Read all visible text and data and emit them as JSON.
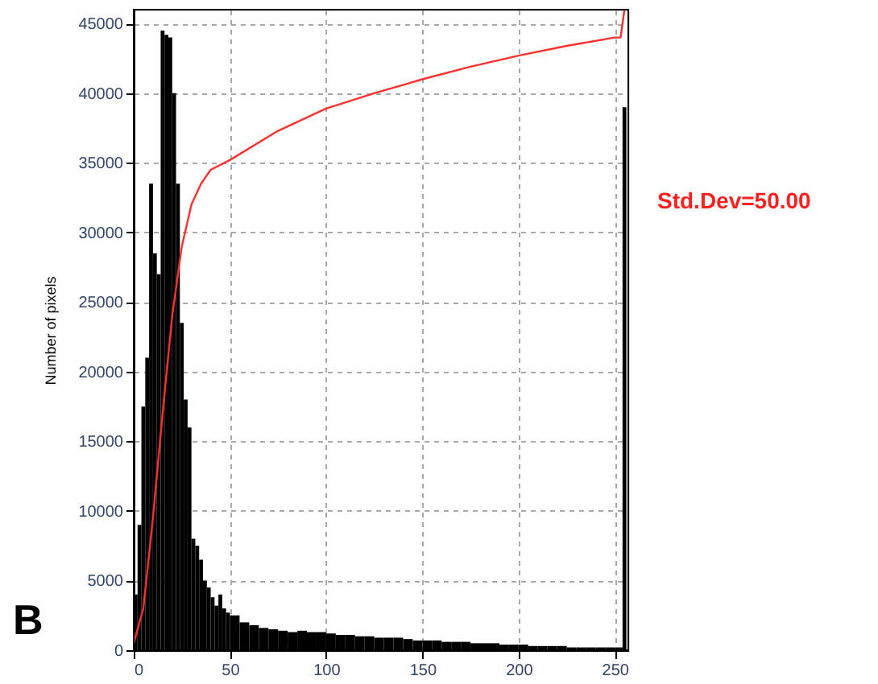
{
  "chart_data": {
    "type": "histogram",
    "ylabel": "Number of pixels",
    "bins": [
      0,
      2,
      4,
      6,
      8,
      10,
      12,
      14,
      16,
      18,
      20,
      22,
      24,
      26,
      28,
      30,
      32,
      34,
      36,
      38,
      40,
      42,
      44,
      46,
      48,
      50,
      55,
      60,
      65,
      70,
      75,
      80,
      85,
      90,
      95,
      100,
      105,
      110,
      115,
      120,
      125,
      130,
      135,
      140,
      145,
      150,
      155,
      160,
      165,
      170,
      175,
      180,
      185,
      190,
      195,
      200,
      205,
      210,
      215,
      220,
      225,
      230,
      235,
      240,
      245,
      250,
      254,
      256
    ],
    "values": [
      4000,
      9000,
      17500,
      21000,
      33500,
      28500,
      27000,
      44500,
      44200,
      44000,
      40000,
      33500,
      23500,
      18000,
      16000,
      8000,
      7500,
      6500,
      5000,
      4500,
      3800,
      3200,
      4000,
      3000,
      2700,
      2500,
      2000,
      1800,
      1600,
      1500,
      1400,
      1300,
      1400,
      1300,
      1300,
      1200,
      1100,
      1100,
      1000,
      1000,
      900,
      900,
      900,
      800,
      700,
      700,
      700,
      600,
      600,
      600,
      500,
      500,
      500,
      400,
      400,
      400,
      300,
      300,
      300,
      300,
      200,
      200,
      200,
      200,
      200,
      200,
      39000
    ],
    "color": "#000000",
    "series": [
      {
        "type": "line",
        "color": "#ff3030",
        "x": [
          0,
          5,
          10,
          15,
          20,
          25,
          30,
          35,
          40,
          50,
          75,
          100,
          125,
          150,
          175,
          200,
          225,
          250,
          253,
          255
        ],
        "values": [
          500,
          3000,
          9500,
          17000,
          24000,
          29000,
          32000,
          33500,
          34500,
          35200,
          37300,
          38900,
          40000,
          41000,
          41900,
          42700,
          43400,
          44000,
          44000,
          46000
        ]
      }
    ],
    "xlim": [
      0,
      257
    ],
    "ylim": [
      0,
      46000
    ],
    "xticks": [
      0,
      50,
      100,
      150,
      200,
      250
    ],
    "yticks": [
      0,
      5000,
      10000,
      15000,
      20000,
      25000,
      30000,
      35000,
      40000,
      45000
    ],
    "grid": true,
    "line_style": "solid",
    "marker": "none",
    "annotations": [
      "B",
      "Std.Dev=50.00"
    ]
  }
}
